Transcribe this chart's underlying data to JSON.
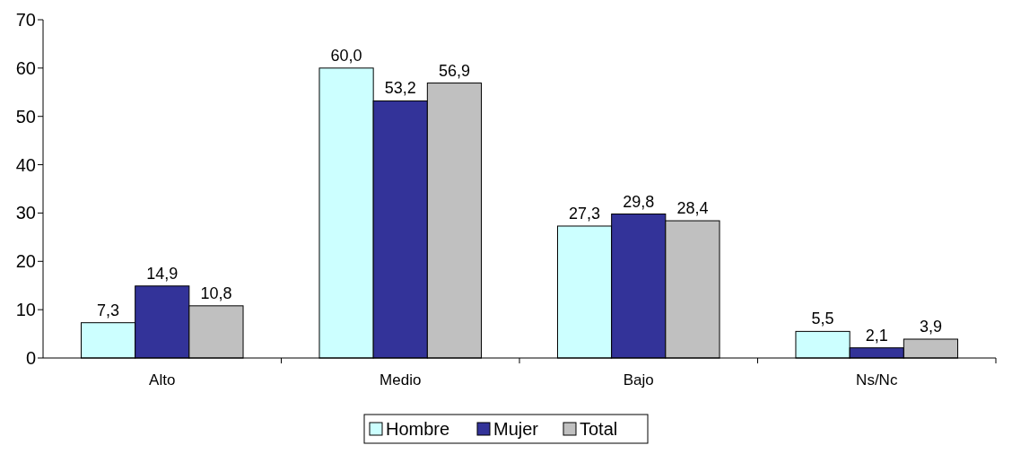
{
  "chart_data": {
    "type": "bar",
    "categories": [
      "Alto",
      "Medio",
      "Bajo",
      "Ns/Nc"
    ],
    "series": [
      {
        "name": "Hombre",
        "color": "#ccffff",
        "values": [
          7.3,
          60.0,
          27.3,
          5.5
        ],
        "value_labels": [
          "7,3",
          "60,0",
          "27,3",
          "5,5"
        ]
      },
      {
        "name": "Mujer",
        "color": "#333399",
        "values": [
          14.9,
          53.2,
          29.8,
          2.1
        ],
        "value_labels": [
          "14,9",
          "53,2",
          "29,8",
          "2,1"
        ]
      },
      {
        "name": "Total",
        "color": "#c0c0c0",
        "values": [
          10.8,
          56.9,
          28.4,
          3.9
        ],
        "value_labels": [
          "10,8",
          "56,9",
          "28,4",
          "3,9"
        ]
      }
    ],
    "ylim": [
      0,
      70
    ],
    "yticks": [
      0,
      10,
      20,
      30,
      40,
      50,
      60,
      70
    ],
    "legend": "bottom"
  }
}
